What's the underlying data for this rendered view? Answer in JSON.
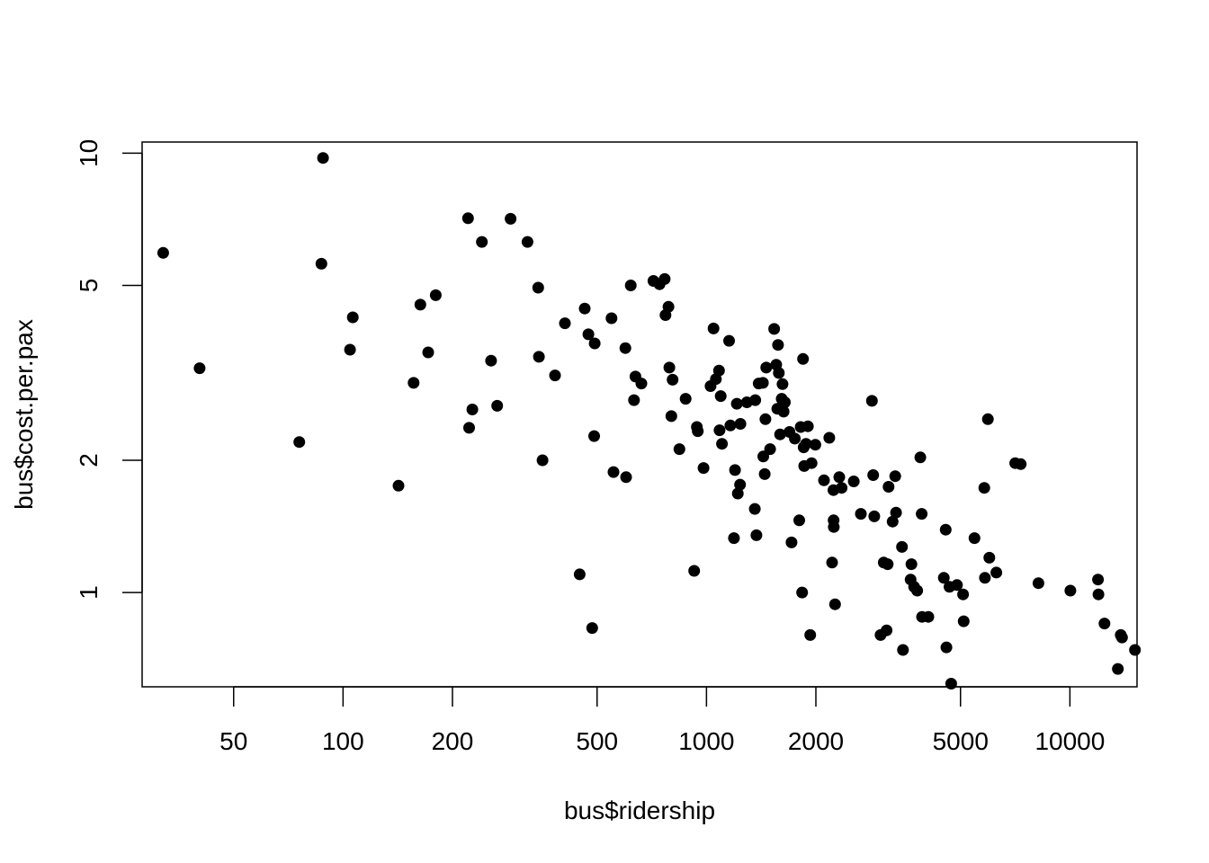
{
  "chart_data": {
    "type": "scatter",
    "title": "",
    "xlabel": "bus$ridership",
    "ylabel": "bus$cost.per.pax",
    "x_scale": "log",
    "y_scale": "log",
    "xlim": [
      28,
      15300
    ],
    "ylim": [
      0.61,
      10.6
    ],
    "x_ticks": [
      50,
      100,
      200,
      500,
      1000,
      2000,
      5000,
      10000
    ],
    "x_tick_labels": [
      "50",
      "100",
      "200",
      "500",
      "1000",
      "2000",
      "5000",
      "10000"
    ],
    "y_ticks": [
      1,
      2,
      5,
      10
    ],
    "y_tick_labels": [
      "1",
      "2",
      "5",
      "10"
    ],
    "grid": false,
    "marker_color": "#000000",
    "points": [
      [
        32,
        5.93
      ],
      [
        40.3,
        3.24
      ],
      [
        75.8,
        2.2
      ],
      [
        87.2,
        5.6
      ],
      [
        88.1,
        9.75
      ],
      [
        104.5,
        3.57
      ],
      [
        106.4,
        4.23
      ],
      [
        142.1,
        1.75
      ],
      [
        156.4,
        3.0
      ],
      [
        163.2,
        4.52
      ],
      [
        171.5,
        3.52
      ],
      [
        179.9,
        4.75
      ],
      [
        220.7,
        7.11
      ],
      [
        222.3,
        2.37
      ],
      [
        226.9,
        2.61
      ],
      [
        241,
        6.28
      ],
      [
        255.5,
        3.37
      ],
      [
        265.5,
        2.66
      ],
      [
        289.1,
        7.09
      ],
      [
        321.8,
        6.28
      ],
      [
        344.3,
        4.94
      ],
      [
        345.9,
        3.44
      ],
      [
        353.8,
        2.0
      ],
      [
        383,
        3.12
      ],
      [
        407.9,
        4.1
      ],
      [
        447.7,
        1.1
      ],
      [
        462.3,
        4.43
      ],
      [
        473.2,
        3.87
      ],
      [
        484.7,
        0.83
      ],
      [
        490.9,
        2.27
      ],
      [
        492.6,
        3.69
      ],
      [
        547.8,
        4.21
      ],
      [
        554.8,
        1.88
      ],
      [
        598.1,
        3.6
      ],
      [
        600.9,
        1.83
      ],
      [
        618.9,
        5.0
      ],
      [
        631.7,
        2.74
      ],
      [
        637.6,
        3.1
      ],
      [
        662.1,
        2.99
      ],
      [
        714.5,
        5.12
      ],
      [
        743,
        5.03
      ],
      [
        767.3,
        5.17
      ],
      [
        771.3,
        4.28
      ],
      [
        786,
        4.47
      ],
      [
        790.6,
        3.25
      ],
      [
        800.6,
        2.52
      ],
      [
        806.8,
        3.05
      ],
      [
        842.5,
        2.12
      ],
      [
        876.2,
        2.76
      ],
      [
        925,
        1.12
      ],
      [
        941.2,
        2.38
      ],
      [
        946.3,
        2.33
      ],
      [
        981.7,
        1.92
      ],
      [
        1026,
        2.95
      ],
      [
        1045.7,
        3.99
      ],
      [
        1061,
        3.06
      ],
      [
        1082.5,
        3.2
      ],
      [
        1086.4,
        2.34
      ],
      [
        1094.7,
        2.8
      ],
      [
        1103.5,
        2.18
      ],
      [
        1154,
        3.74
      ],
      [
        1163.5,
        2.4
      ],
      [
        1190,
        1.33
      ],
      [
        1197.9,
        1.9
      ],
      [
        1212,
        2.69
      ],
      [
        1219.3,
        1.68
      ],
      [
        1237.1,
        1.76
      ],
      [
        1240.2,
        2.42
      ],
      [
        1292.1,
        2.71
      ],
      [
        1358.4,
        1.55
      ],
      [
        1362.2,
        2.74
      ],
      [
        1372.4,
        1.35
      ],
      [
        1392.2,
        2.99
      ],
      [
        1429.4,
        3.0
      ],
      [
        1433,
        2.04
      ],
      [
        1446.4,
        1.86
      ],
      [
        1452.4,
        2.48
      ],
      [
        1460.5,
        3.25
      ],
      [
        1496.6,
        2.12
      ],
      [
        1535.3,
        3.98
      ],
      [
        1555.9,
        3.3
      ],
      [
        1566.4,
        2.62
      ],
      [
        1573.3,
        3.66
      ],
      [
        1581.3,
        3.16
      ],
      [
        1594.6,
        2.29
      ],
      [
        1611.1,
        2.76
      ],
      [
        1619.1,
        2.98
      ],
      [
        1630.4,
        2.58
      ],
      [
        1642.7,
        2.71
      ],
      [
        1692.1,
        2.32
      ],
      [
        1713.4,
        1.3
      ],
      [
        1750.4,
        2.24
      ],
      [
        1799.9,
        1.46
      ],
      [
        1816,
        2.38
      ],
      [
        1832.9,
        1.0
      ],
      [
        1843.6,
        3.4
      ],
      [
        1851.2,
        2.14
      ],
      [
        1857.3,
        1.94
      ],
      [
        1879,
        2.18
      ],
      [
        1900.8,
        2.39
      ],
      [
        1929.2,
        0.8
      ],
      [
        1945.7,
        1.97
      ],
      [
        1993.7,
        2.17
      ],
      [
        2104.8,
        1.8
      ],
      [
        2177.7,
        2.25
      ],
      [
        2216.6,
        1.17
      ],
      [
        2235.7,
        1.71
      ],
      [
        2237.8,
        1.46
      ],
      [
        2240.6,
        1.41
      ],
      [
        2258.7,
        0.94
      ],
      [
        2320,
        1.83
      ],
      [
        2353.7,
        1.73
      ],
      [
        2542.3,
        1.79
      ],
      [
        2659.1,
        1.51
      ],
      [
        2853.5,
        2.73
      ],
      [
        2876,
        1.85
      ],
      [
        2896.1,
        1.49
      ],
      [
        3013.8,
        0.8
      ],
      [
        3074.7,
        1.17
      ],
      [
        3130,
        0.82
      ],
      [
        3151.5,
        1.16
      ],
      [
        3170.4,
        1.74
      ],
      [
        3251.5,
        1.45
      ],
      [
        3305.6,
        1.84
      ],
      [
        3323.5,
        1.52
      ],
      [
        3450.1,
        1.27
      ],
      [
        3472.7,
        0.74
      ],
      [
        3644.2,
        1.07
      ],
      [
        3663,
        1.16
      ],
      [
        3726.7,
        1.03
      ],
      [
        3799.4,
        1.01
      ],
      [
        3877.3,
        2.03
      ],
      [
        3909.1,
        1.51
      ],
      [
        3918.2,
        0.88
      ],
      [
        4077,
        0.88
      ],
      [
        4499,
        1.08
      ],
      [
        4551,
        1.39
      ],
      [
        4572,
        0.75
      ],
      [
        4663.8,
        1.03
      ],
      [
        4713,
        0.62
      ],
      [
        4889.4,
        1.04
      ],
      [
        5081.5,
        0.99
      ],
      [
        5102.7,
        0.86
      ],
      [
        5461.9,
        1.33
      ],
      [
        5813.6,
        1.73
      ],
      [
        5836.7,
        1.08
      ],
      [
        5947.6,
        2.48
      ],
      [
        6002.5,
        1.2
      ],
      [
        6276,
        1.11
      ],
      [
        7072,
        1.97
      ],
      [
        7320.7,
        1.96
      ],
      [
        8194.5,
        1.05
      ],
      [
        10032,
        1.01
      ],
      [
        11950,
        1.07
      ],
      [
        11980,
        0.99
      ],
      [
        12450,
        0.85
      ],
      [
        13550,
        0.67
      ],
      [
        13800,
        0.8
      ],
      [
        13910,
        0.79
      ],
      [
        15100,
        0.74
      ]
    ]
  }
}
